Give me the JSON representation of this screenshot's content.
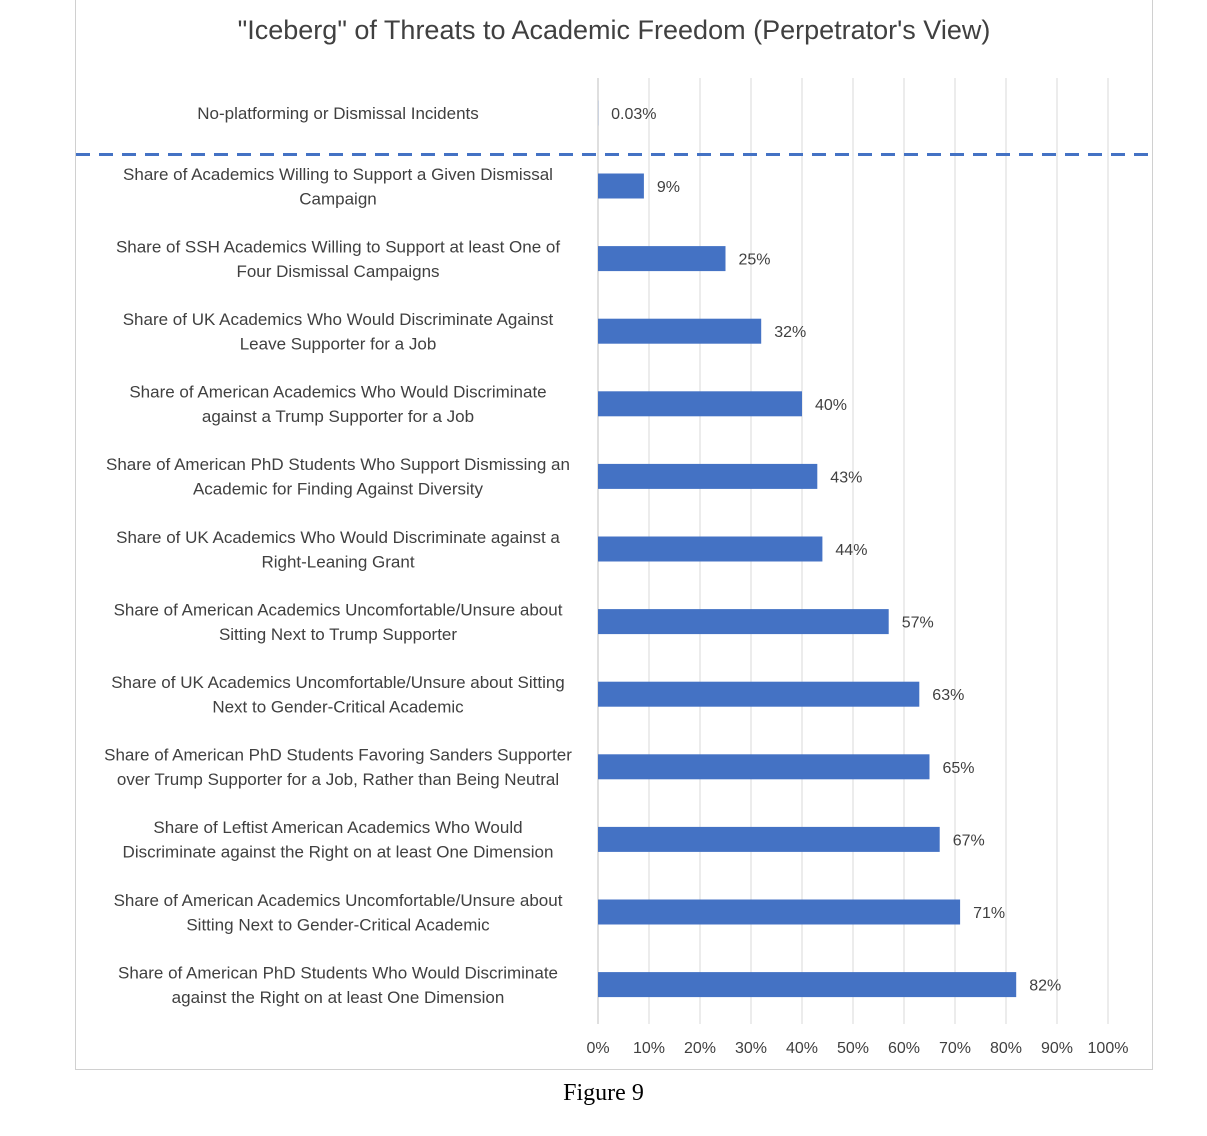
{
  "chart_data": {
    "type": "bar",
    "orientation": "horizontal",
    "title": "\"Iceberg\" of Threats to Academic Freedom (Perpetrator's View)",
    "categories": [
      [
        "No-platforming or Dismissal Incidents"
      ],
      [
        "Share of Academics Willing to Support a Given Dismissal",
        "Campaign"
      ],
      [
        "Share of SSH Academics Willing to Support at least One of",
        "Four Dismissal Campaigns"
      ],
      [
        "Share of UK Academics Who Would Discriminate Against",
        "Leave Supporter for a Job"
      ],
      [
        "Share of American Academics Who Would Discriminate",
        "against a Trump Supporter for a Job"
      ],
      [
        "Share of American PhD Students Who Support Dismissing an",
        "Academic for Finding Against Diversity"
      ],
      [
        "Share of UK Academics Who Would Discriminate against a",
        "Right-Leaning Grant"
      ],
      [
        "Share of American Academics Uncomfortable/Unsure about",
        "Sitting Next to Trump Supporter"
      ],
      [
        "Share of UK Academics Uncomfortable/Unsure about Sitting",
        "Next to Gender-Critical Academic"
      ],
      [
        "Share of American PhD Students Favoring Sanders Supporter",
        "over Trump Supporter for a Job, Rather than Being Neutral"
      ],
      [
        "Share of Leftist American Academics Who Would",
        "Discriminate against the Right on at least One Dimension"
      ],
      [
        "Share of American Academics Uncomfortable/Unsure about",
        "Sitting Next to Gender-Critical Academic"
      ],
      [
        "Share of American PhD Students Who Would Discriminate",
        "against the Right on at least One Dimension"
      ]
    ],
    "values": [
      0.03,
      9,
      25,
      32,
      40,
      43,
      44,
      57,
      63,
      65,
      67,
      71,
      82
    ],
    "value_labels": [
      "0.03%",
      "9%",
      "25%",
      "32%",
      "40%",
      "43%",
      "44%",
      "57%",
      "63%",
      "65%",
      "67%",
      "71%",
      "82%"
    ],
    "x_ticks": [
      "0%",
      "10%",
      "20%",
      "30%",
      "40%",
      "50%",
      "60%",
      "70%",
      "80%",
      "90%",
      "100%"
    ],
    "xlim": [
      0,
      100
    ],
    "grid": "vertical",
    "bar_color": "#4472c4",
    "waterline_color": "#4472c4",
    "waterline_style": "dashed",
    "waterline_after_category_index": 0
  },
  "caption": "Figure 9"
}
